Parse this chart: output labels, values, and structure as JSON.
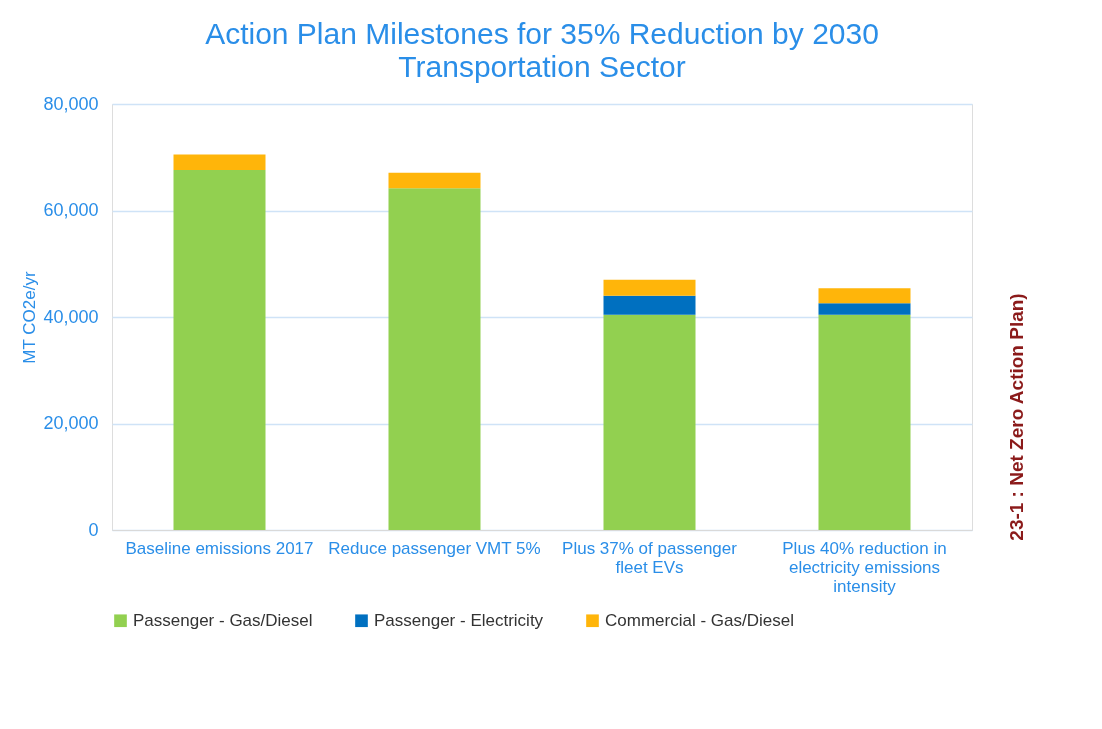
{
  "chart_data": {
    "type": "bar",
    "title": "Action Plan Milestones for 35% Reduction by 2030",
    "subtitle": "Transportation Sector",
    "ylabel": "MT CO2e/yr",
    "categories": [
      "Baseline emissions 2017",
      "Reduce passenger VMT 5%",
      "Plus 37% of passenger fleet EVs",
      "Plus 40% reduction in electricity emissions intensity"
    ],
    "stacked": true,
    "series": [
      {
        "name": "Passenger - Gas/Diesel",
        "color": "#92d050",
        "values": [
          67600,
          64200,
          40400,
          40400
        ]
      },
      {
        "name": "Passenger - Electricity",
        "color": "#0070c0",
        "values": [
          0,
          0,
          3600,
          2200
        ]
      },
      {
        "name": "Commercial - Gas/Diesel",
        "color": "#ffb50a",
        "values": [
          2900,
          2900,
          3000,
          2800
        ]
      }
    ],
    "ylim": [
      0,
      80000
    ],
    "yticks": [
      {
        "value": 0,
        "label": "0"
      },
      {
        "value": 20000,
        "label": "20,000"
      },
      {
        "value": 40000,
        "label": "40,000"
      },
      {
        "value": 60000,
        "label": "60,000"
      },
      {
        "value": 80000,
        "label": "80,000"
      }
    ],
    "grid": "y",
    "legend": "bottom",
    "annotations": [
      "23-1 : Net Zero Action Plan)"
    ]
  }
}
